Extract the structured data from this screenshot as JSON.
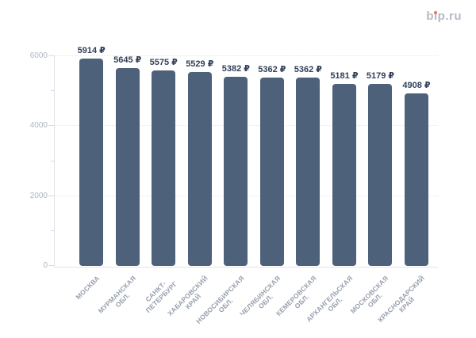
{
  "logo": {
    "text": "bip.ru",
    "text_color": "#b5bac9",
    "dot_color": "#e8745c"
  },
  "chart_data": {
    "type": "bar",
    "categories": [
      "МОСКВА",
      "МУРМАНСКАЯ ОБЛ.",
      "САНКТ-ПЕТЕРБУРГ",
      "ХАБАРОВСКИЙ КРАЙ",
      "НОВОСИБИРСКАЯ ОБЛ.",
      "ЧЕЛЯБИНСКАЯ ОБЛ.",
      "КЕМЕРОВСКАЯ ОБЛ.",
      "АРХАНГЕЛЬСКАЯ ОБЛ.",
      "МОСКОВСКАЯ ОБЛ.",
      "КРАСНОДАРСКИЙ КРАЙ"
    ],
    "category_lines": [
      [
        "МОСКВА"
      ],
      [
        "МУРМАНСКАЯ",
        "ОБЛ."
      ],
      [
        "САНКТ-",
        "ПЕТЕРБУРГ"
      ],
      [
        "ХАБАРОВСКИЙ",
        "КРАЙ"
      ],
      [
        "НОВОСИБИРСКАЯ",
        "ОБЛ."
      ],
      [
        "ЧЕЛЯБИНСКАЯ",
        "ОБЛ."
      ],
      [
        "КЕМЕРОВСКАЯ",
        "ОБЛ."
      ],
      [
        "АРХАНГЕЛЬСКАЯ",
        "ОБЛ."
      ],
      [
        "МОСКОВСКАЯ",
        "ОБЛ."
      ],
      [
        "КРАСНОДАРСКИЙ",
        "КРАЙ"
      ]
    ],
    "values": [
      5914,
      5645,
      5575,
      5529,
      5382,
      5362,
      5362,
      5181,
      5179,
      4908
    ],
    "value_labels": [
      "5914 ₽",
      "5645 ₽",
      "5575 ₽",
      "5529 ₽",
      "5382 ₽",
      "5362 ₽",
      "5362 ₽",
      "5181 ₽",
      "5179 ₽",
      "4908 ₽"
    ],
    "y_ticks": [
      0,
      2000,
      4000,
      6000
    ],
    "y_tick_labels": [
      "0",
      "2000",
      "4000",
      "6000"
    ],
    "y_minor_ticks": [
      1000,
      3000,
      5000
    ],
    "ylim": [
      0,
      6000
    ],
    "grid": "horizontal-dotted",
    "legend": "none",
    "bar_color": "#4d617a",
    "value_label_color": "#323f5a"
  }
}
